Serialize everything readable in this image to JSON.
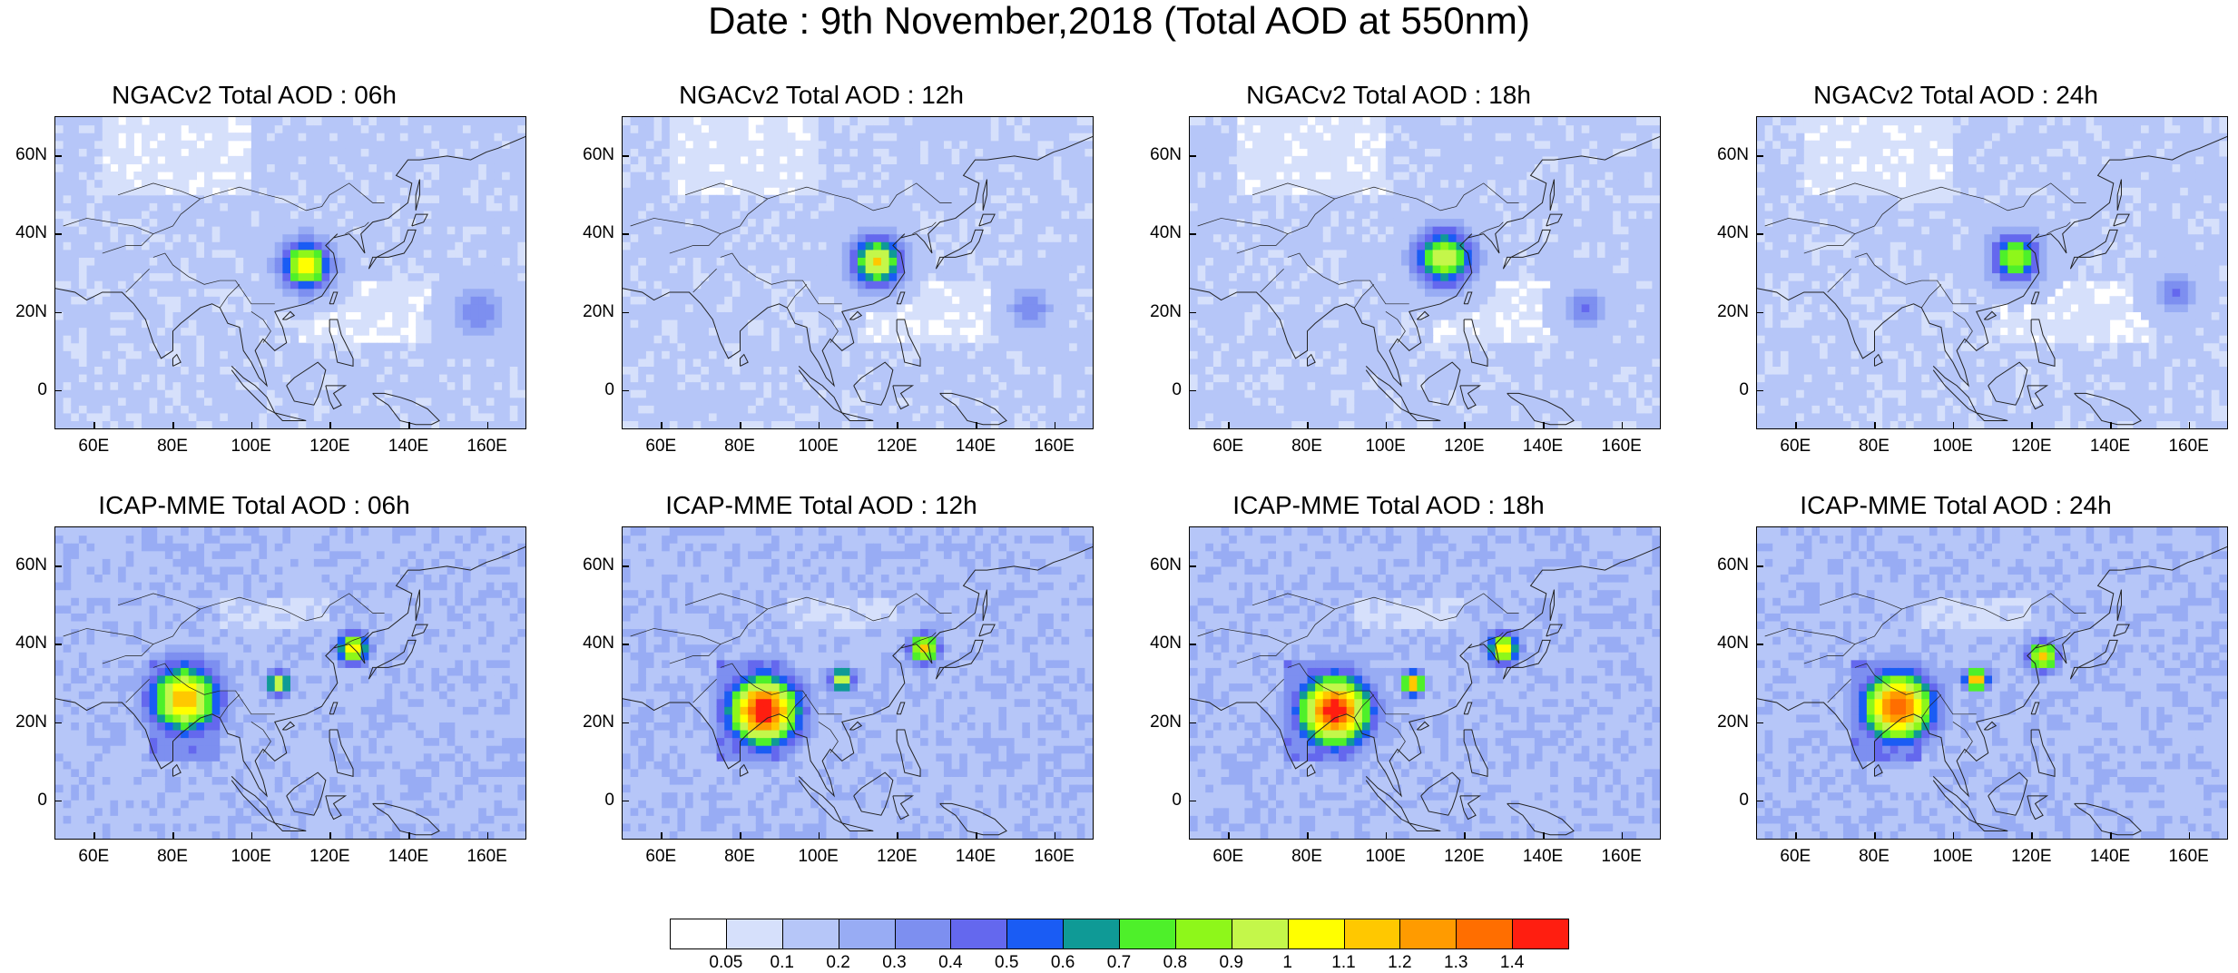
{
  "title": "Date : 9th November,2018 (Total AOD at 550nm)",
  "axes": {
    "lat_labels": [
      "60N",
      "40N",
      "20N",
      "0"
    ],
    "lat_values": [
      60,
      40,
      20,
      0
    ],
    "lon_labels": [
      "60E",
      "80E",
      "100E",
      "120E",
      "140E",
      "160E"
    ],
    "lon_values": [
      60,
      80,
      100,
      120,
      140,
      160
    ],
    "lon_range": [
      50,
      170
    ],
    "lat_range": [
      -10,
      70
    ]
  },
  "panels": [
    {
      "id": "ngac-06",
      "title": "NGACv2 Total AOD : 06h",
      "model": "NGACv2",
      "hour": 6
    },
    {
      "id": "ngac-12",
      "title": "NGACv2 Total AOD : 12h",
      "model": "NGACv2",
      "hour": 12
    },
    {
      "id": "ngac-18",
      "title": "NGACv2 Total AOD : 18h",
      "model": "NGACv2",
      "hour": 18
    },
    {
      "id": "ngac-24",
      "title": "NGACv2 Total AOD : 24h",
      "model": "NGACv2",
      "hour": 24
    },
    {
      "id": "icap-06",
      "title": "ICAP-MME Total AOD : 06h",
      "model": "ICAP-MME",
      "hour": 6
    },
    {
      "id": "icap-12",
      "title": "ICAP-MME Total AOD : 12h",
      "model": "ICAP-MME",
      "hour": 12
    },
    {
      "id": "icap-18",
      "title": "ICAP-MME Total AOD : 18h",
      "model": "ICAP-MME",
      "hour": 18
    },
    {
      "id": "icap-24",
      "title": "ICAP-MME Total AOD : 24h",
      "model": "ICAP-MME",
      "hour": 24
    }
  ],
  "colorbar": {
    "levels": [
      "0.05",
      "0.1",
      "0.2",
      "0.3",
      "0.4",
      "0.5",
      "0.6",
      "0.7",
      "0.8",
      "0.9",
      "1",
      "1.1",
      "1.2",
      "1.3",
      "1.4"
    ],
    "colors": [
      "#ffffff",
      "#d6e0fb",
      "#b6c6f8",
      "#98acf4",
      "#7d8ff0",
      "#6468ee",
      "#1a5cf4",
      "#0f9a96",
      "#4ef02a",
      "#8ef71a",
      "#c4f74a",
      "#ffff00",
      "#ffc800",
      "#ff9b00",
      "#ff6e00",
      "#ff1e10"
    ]
  },
  "chart_data": {
    "type": "heatmap",
    "title": "Date : 9th November,2018 (Total AOD at 550nm)",
    "xlabel": "",
    "ylabel": "",
    "xlim": [
      50,
      170
    ],
    "ylim": [
      -10,
      70
    ],
    "x_ticks": [
      "60E",
      "80E",
      "100E",
      "120E",
      "140E",
      "160E"
    ],
    "y_ticks": [
      "60N",
      "40N",
      "20N",
      "0"
    ],
    "color_levels": [
      0.05,
      0.1,
      0.2,
      0.3,
      0.4,
      0.5,
      0.6,
      0.7,
      0.8,
      0.9,
      1,
      1.1,
      1.2,
      1.3,
      1.4
    ],
    "panels": [
      {
        "title": "NGACv2 Total AOD : 06h",
        "hotspots": [
          {
            "lon": 113,
            "lat": 31,
            "aod": 1.0,
            "r": 6
          },
          {
            "lon": 157,
            "lat": 19,
            "aod": 0.3,
            "r": 6
          }
        ]
      },
      {
        "title": "NGACv2 Total AOD : 12h",
        "hotspots": [
          {
            "lon": 114,
            "lat": 32,
            "aod": 1.0,
            "r": 6
          },
          {
            "lon": 153,
            "lat": 20,
            "aod": 0.3,
            "r": 5
          }
        ]
      },
      {
        "title": "NGACv2 Total AOD : 18h",
        "hotspots": [
          {
            "lon": 114,
            "lat": 33,
            "aod": 0.9,
            "r": 7
          },
          {
            "lon": 150,
            "lat": 20,
            "aod": 0.3,
            "r": 5
          }
        ]
      },
      {
        "title": "NGACv2 Total AOD : 24h",
        "hotspots": [
          {
            "lon": 115,
            "lat": 33,
            "aod": 0.8,
            "r": 6
          },
          {
            "lon": 156,
            "lat": 24,
            "aod": 0.3,
            "r": 5
          }
        ]
      },
      {
        "title": "ICAP-MME Total AOD : 06h",
        "hotspots": [
          {
            "lon": 82,
            "lat": 25,
            "aod": 1.1,
            "r": 9
          },
          {
            "lon": 125,
            "lat": 38,
            "aod": 1.0,
            "r": 4
          },
          {
            "lon": 106,
            "lat": 29,
            "aod": 0.9,
            "r": 3
          }
        ]
      },
      {
        "title": "ICAP-MME Total AOD : 12h",
        "hotspots": [
          {
            "lon": 85,
            "lat": 22,
            "aod": 1.4,
            "r": 9
          },
          {
            "lon": 126,
            "lat": 38,
            "aod": 1.0,
            "r": 4
          },
          {
            "lon": 105,
            "lat": 30,
            "aod": 0.9,
            "r": 3
          }
        ]
      },
      {
        "title": "ICAP-MME Total AOD : 18h",
        "hotspots": [
          {
            "lon": 86,
            "lat": 22,
            "aod": 1.4,
            "r": 9
          },
          {
            "lon": 129,
            "lat": 38,
            "aod": 1.0,
            "r": 4
          },
          {
            "lon": 106,
            "lat": 29,
            "aod": 1.2,
            "r": 3
          }
        ]
      },
      {
        "title": "ICAP-MME Total AOD : 24h",
        "hotspots": [
          {
            "lon": 85,
            "lat": 23,
            "aod": 1.3,
            "r": 9
          },
          {
            "lon": 122,
            "lat": 36,
            "aod": 1.0,
            "r": 4
          },
          {
            "lon": 105,
            "lat": 30,
            "aod": 1.2,
            "r": 3
          }
        ]
      }
    ]
  }
}
